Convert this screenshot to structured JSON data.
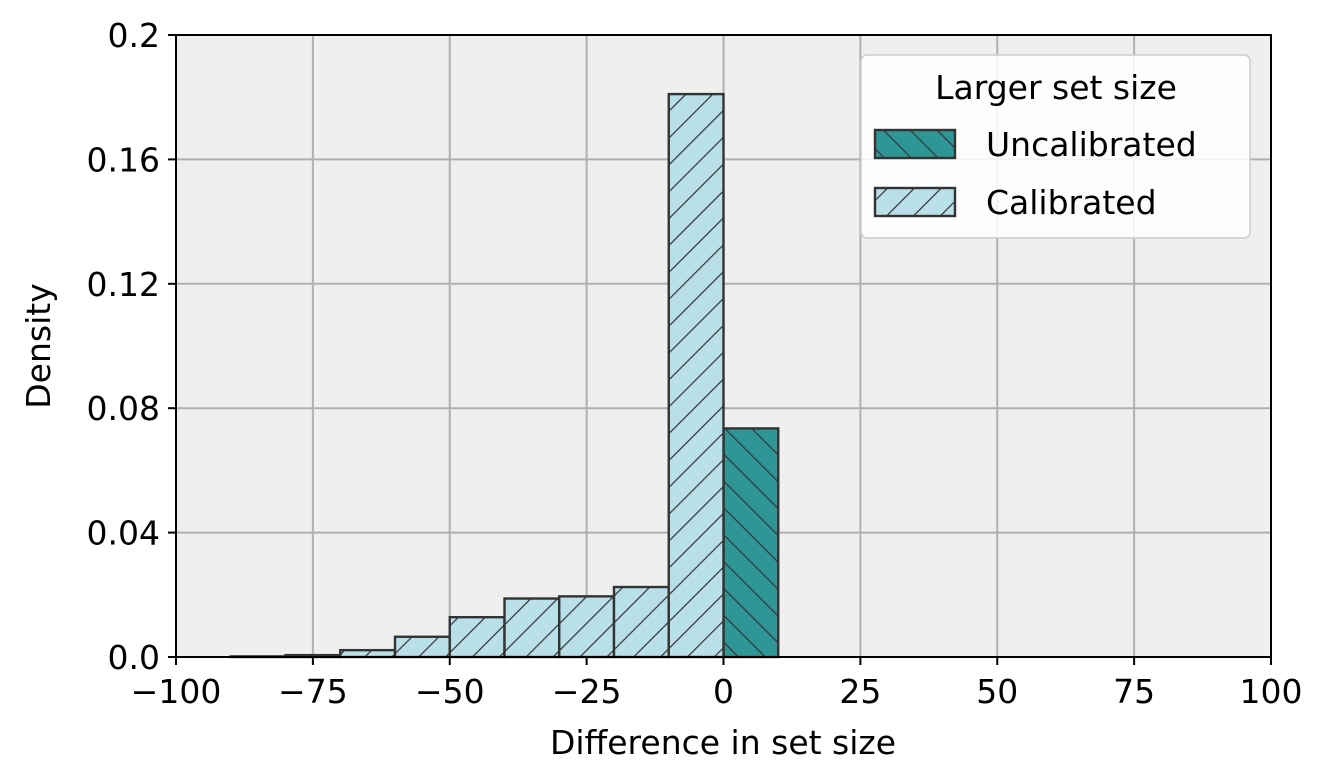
{
  "chart_data": {
    "type": "bar",
    "title": "",
    "xlabel": "Difference in set size",
    "ylabel": "Density",
    "xlim": [
      -100,
      100
    ],
    "ylim": [
      0,
      0.2
    ],
    "x_ticks": [
      "−100",
      "−75",
      "−50",
      "−25",
      "0",
      "25",
      "50",
      "75",
      "100"
    ],
    "x_tick_values": [
      -100,
      -75,
      -50,
      -25,
      0,
      25,
      50,
      75,
      100
    ],
    "y_ticks": [
      "0.0",
      "0.04",
      "0.08",
      "0.12",
      "0.16",
      "0.2"
    ],
    "y_tick_values": [
      0,
      0.04,
      0.08,
      0.12,
      0.16,
      0.2
    ],
    "grid": true,
    "legend": {
      "title": "Larger set size",
      "placement": "top-right"
    },
    "series": [
      {
        "name": "Uncalibrated",
        "color": "#2e9696",
        "hatch": "backslash",
        "bins": [
          {
            "x0": 0,
            "x1": 10,
            "value": 0.0735
          }
        ]
      },
      {
        "name": "Calibrated",
        "color": "#b9dfe8",
        "hatch": "slash",
        "bins": [
          {
            "x0": -90,
            "x1": -80,
            "value": 0.0002
          },
          {
            "x0": -80,
            "x1": -70,
            "value": 0.0006
          },
          {
            "x0": -70,
            "x1": -60,
            "value": 0.0022
          },
          {
            "x0": -60,
            "x1": -50,
            "value": 0.0065
          },
          {
            "x0": -50,
            "x1": -40,
            "value": 0.0128
          },
          {
            "x0": -40,
            "x1": -30,
            "value": 0.0188
          },
          {
            "x0": -30,
            "x1": -20,
            "value": 0.0195
          },
          {
            "x0": -20,
            "x1": -10,
            "value": 0.0225
          },
          {
            "x0": -10,
            "x1": 0,
            "value": 0.181
          }
        ]
      }
    ]
  }
}
